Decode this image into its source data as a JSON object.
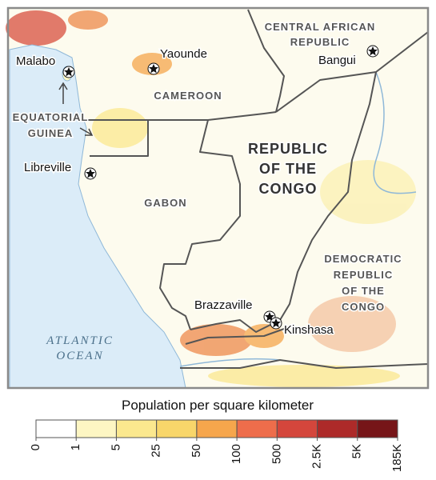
{
  "map": {
    "cities": [
      {
        "name": "Malabo"
      },
      {
        "name": "Yaounde"
      },
      {
        "name": "Bangui"
      },
      {
        "name": "Libreville"
      },
      {
        "name": "Brazzaville"
      },
      {
        "name": "Kinshasa"
      }
    ],
    "countries": [
      {
        "lines": [
          "CENTRAL AFRICAN",
          "REPUBLIC"
        ]
      },
      {
        "lines": [
          "CAMEROON"
        ]
      },
      {
        "lines": [
          "EQUATORIAL",
          "GUINEA"
        ]
      },
      {
        "lines": [
          "GABON"
        ]
      },
      {
        "lines": [
          "REPUBLIC",
          "OF THE",
          "CONGO"
        ]
      },
      {
        "lines": [
          "DEMOCRATIC",
          "REPUBLIC",
          "OF THE",
          "CONGO"
        ]
      }
    ],
    "ocean": {
      "lines": [
        "ATLANTIC",
        "OCEAN"
      ]
    }
  },
  "legend": {
    "title": "Population per square kilometer",
    "ticks": [
      0,
      1,
      5,
      25,
      50,
      100,
      500,
      {
        "value": 2500,
        "label": "2.5K"
      },
      {
        "value": 5000,
        "label": "5K"
      },
      {
        "value": 185000,
        "label": "185K"
      }
    ],
    "colors": [
      "#ffffff",
      "#fdf6c3",
      "#fbe88e",
      "#f8d66a",
      "#f6a64c",
      "#ee6d4b",
      "#d4463c",
      "#ad2a29",
      "#761518"
    ]
  }
}
